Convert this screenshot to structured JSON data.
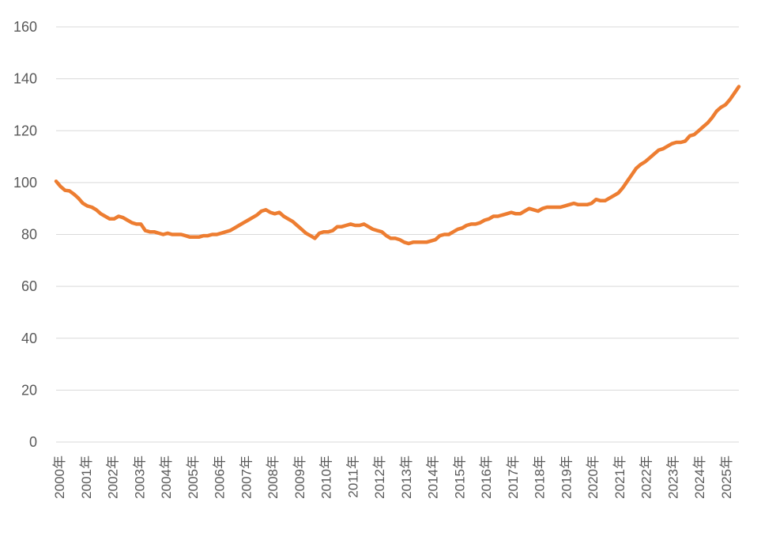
{
  "chart_data": {
    "type": "line",
    "title": "",
    "xlabel": "",
    "ylabel": "",
    "ylim": [
      0,
      160
    ],
    "yticks": [
      0,
      20,
      40,
      60,
      80,
      100,
      120,
      140,
      160
    ],
    "grid": true,
    "legend": "none",
    "xtick_labels": [
      "2000年",
      "2001年",
      "2002年",
      "2003年",
      "2004年",
      "2005年",
      "2006年",
      "2007年",
      "2008年",
      "2009年",
      "2010年",
      "2011年",
      "2012年",
      "2013年",
      "2014年",
      "2015年",
      "2016年",
      "2017年",
      "2018年",
      "2019年",
      "2020年",
      "2021年",
      "2022年",
      "2023年",
      "2024年",
      "2025年"
    ],
    "x_start": "2000-01",
    "x_end": "2025-07",
    "series": [
      {
        "name": "",
        "color": "#ED7D31",
        "points": [
          [
            "2000-01",
            100.5
          ],
          [
            "2000-03",
            98.5
          ],
          [
            "2000-05",
            97
          ],
          [
            "2000-07",
            96.8
          ],
          [
            "2000-09",
            95.5
          ],
          [
            "2000-11",
            94
          ],
          [
            "2001-01",
            92
          ],
          [
            "2001-03",
            91
          ],
          [
            "2001-05",
            90.5
          ],
          [
            "2001-07",
            89.5
          ],
          [
            "2001-09",
            88
          ],
          [
            "2001-11",
            87
          ],
          [
            "2002-01",
            86
          ],
          [
            "2002-03",
            86
          ],
          [
            "2002-05",
            87
          ],
          [
            "2002-07",
            86.5
          ],
          [
            "2002-09",
            85.5
          ],
          [
            "2002-11",
            84.5
          ],
          [
            "2003-01",
            84
          ],
          [
            "2003-03",
            84
          ],
          [
            "2003-05",
            81.5
          ],
          [
            "2003-07",
            81
          ],
          [
            "2003-09",
            81
          ],
          [
            "2003-11",
            80.5
          ],
          [
            "2004-01",
            80
          ],
          [
            "2004-03",
            80.5
          ],
          [
            "2004-05",
            80
          ],
          [
            "2004-07",
            80
          ],
          [
            "2004-09",
            80
          ],
          [
            "2004-11",
            79.5
          ],
          [
            "2005-01",
            79
          ],
          [
            "2005-03",
            79
          ],
          [
            "2005-05",
            79
          ],
          [
            "2005-07",
            79.5
          ],
          [
            "2005-09",
            79.5
          ],
          [
            "2005-11",
            80
          ],
          [
            "2006-01",
            80
          ],
          [
            "2006-03",
            80.5
          ],
          [
            "2006-05",
            81
          ],
          [
            "2006-07",
            81.5
          ],
          [
            "2006-09",
            82.5
          ],
          [
            "2006-11",
            83.5
          ],
          [
            "2007-01",
            84.5
          ],
          [
            "2007-03",
            85.5
          ],
          [
            "2007-05",
            86.5
          ],
          [
            "2007-07",
            87.5
          ],
          [
            "2007-09",
            89
          ],
          [
            "2007-11",
            89.5
          ],
          [
            "2008-01",
            88.5
          ],
          [
            "2008-03",
            88
          ],
          [
            "2008-05",
            88.5
          ],
          [
            "2008-07",
            87
          ],
          [
            "2008-09",
            86
          ],
          [
            "2008-11",
            85
          ],
          [
            "2009-01",
            83.5
          ],
          [
            "2009-03",
            82
          ],
          [
            "2009-05",
            80.5
          ],
          [
            "2009-07",
            79.5
          ],
          [
            "2009-09",
            78.5
          ],
          [
            "2009-11",
            80.5
          ],
          [
            "2010-01",
            81
          ],
          [
            "2010-03",
            81
          ],
          [
            "2010-05",
            81.5
          ],
          [
            "2010-07",
            83
          ],
          [
            "2010-09",
            83
          ],
          [
            "2010-11",
            83.5
          ],
          [
            "2011-01",
            84
          ],
          [
            "2011-03",
            83.5
          ],
          [
            "2011-05",
            83.5
          ],
          [
            "2011-07",
            84
          ],
          [
            "2011-09",
            83
          ],
          [
            "2011-11",
            82
          ],
          [
            "2012-01",
            81.5
          ],
          [
            "2012-03",
            81
          ],
          [
            "2012-05",
            79.5
          ],
          [
            "2012-07",
            78.5
          ],
          [
            "2012-09",
            78.5
          ],
          [
            "2012-11",
            78
          ],
          [
            "2013-01",
            77
          ],
          [
            "2013-03",
            76.5
          ],
          [
            "2013-05",
            77
          ],
          [
            "2013-07",
            77
          ],
          [
            "2013-09",
            77
          ],
          [
            "2013-11",
            77
          ],
          [
            "2014-01",
            77.5
          ],
          [
            "2014-03",
            78
          ],
          [
            "2014-05",
            79.5
          ],
          [
            "2014-07",
            80
          ],
          [
            "2014-09",
            80
          ],
          [
            "2014-11",
            81
          ],
          [
            "2015-01",
            82
          ],
          [
            "2015-03",
            82.5
          ],
          [
            "2015-05",
            83.5
          ],
          [
            "2015-07",
            84
          ],
          [
            "2015-09",
            84
          ],
          [
            "2015-11",
            84.5
          ],
          [
            "2016-01",
            85.5
          ],
          [
            "2016-03",
            86
          ],
          [
            "2016-05",
            87
          ],
          [
            "2016-07",
            87
          ],
          [
            "2016-09",
            87.5
          ],
          [
            "2016-11",
            88
          ],
          [
            "2017-01",
            88.5
          ],
          [
            "2017-03",
            88
          ],
          [
            "2017-05",
            88
          ],
          [
            "2017-07",
            89
          ],
          [
            "2017-09",
            90
          ],
          [
            "2017-11",
            89.5
          ],
          [
            "2018-01",
            89
          ],
          [
            "2018-03",
            90
          ],
          [
            "2018-05",
            90.5
          ],
          [
            "2018-07",
            90.5
          ],
          [
            "2018-09",
            90.5
          ],
          [
            "2018-11",
            90.5
          ],
          [
            "2019-01",
            91
          ],
          [
            "2019-03",
            91.5
          ],
          [
            "2019-05",
            92
          ],
          [
            "2019-07",
            91.5
          ],
          [
            "2019-09",
            91.5
          ],
          [
            "2019-11",
            91.5
          ],
          [
            "2020-01",
            92
          ],
          [
            "2020-03",
            93.5
          ],
          [
            "2020-05",
            93
          ],
          [
            "2020-07",
            93
          ],
          [
            "2020-09",
            94
          ],
          [
            "2020-11",
            95
          ],
          [
            "2021-01",
            96
          ],
          [
            "2021-03",
            98
          ],
          [
            "2021-05",
            100.5
          ],
          [
            "2021-07",
            103
          ],
          [
            "2021-09",
            105.5
          ],
          [
            "2021-11",
            107
          ],
          [
            "2022-01",
            108
          ],
          [
            "2022-03",
            109.5
          ],
          [
            "2022-05",
            111
          ],
          [
            "2022-07",
            112.5
          ],
          [
            "2022-09",
            113
          ],
          [
            "2022-11",
            114
          ],
          [
            "2023-01",
            115
          ],
          [
            "2023-03",
            115.5
          ],
          [
            "2023-05",
            115.5
          ],
          [
            "2023-07",
            116
          ],
          [
            "2023-09",
            118
          ],
          [
            "2023-11",
            118.5
          ],
          [
            "2024-01",
            120
          ],
          [
            "2024-03",
            121.5
          ],
          [
            "2024-05",
            123
          ],
          [
            "2024-07",
            125
          ],
          [
            "2024-09",
            127.5
          ],
          [
            "2024-11",
            129
          ],
          [
            "2025-01",
            130
          ],
          [
            "2025-03",
            132
          ],
          [
            "2025-05",
            134.5
          ],
          [
            "2025-07",
            137
          ]
        ]
      }
    ]
  }
}
